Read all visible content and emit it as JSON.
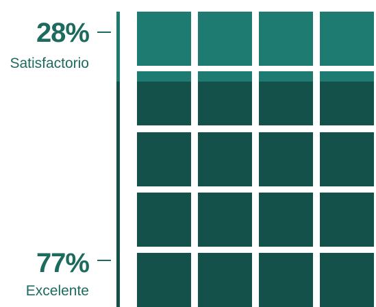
{
  "chart_data": {
    "type": "waffle",
    "rows": 5,
    "columns": 4,
    "series": [
      {
        "name": "Satisfactorio",
        "value_label": "28%",
        "value": 28,
        "color": "#1e7b72"
      },
      {
        "name": "Excelente",
        "value_label": "77%",
        "value": 77,
        "color": "#14514b"
      }
    ]
  }
}
